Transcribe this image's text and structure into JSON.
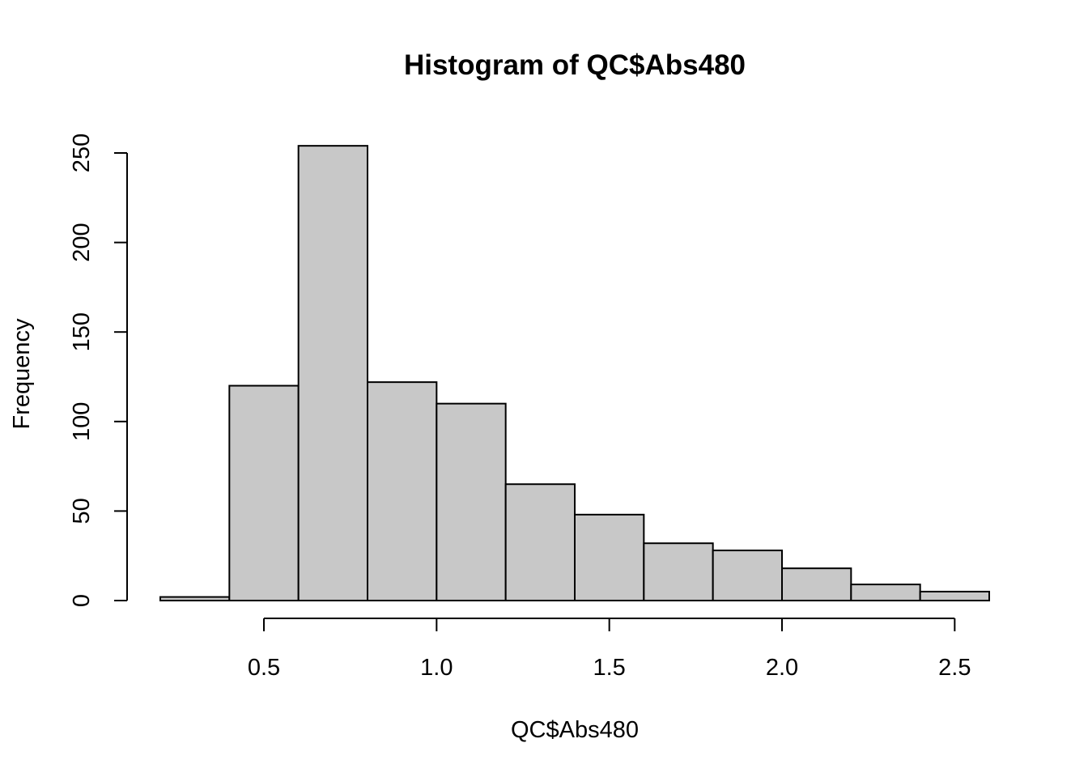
{
  "chart_data": {
    "type": "bar",
    "title": "Histogram of QC$Abs480",
    "xlabel": "QC$Abs480",
    "ylabel": "Frequency",
    "bins": [
      {
        "start": 0.2,
        "end": 0.4,
        "count": 2
      },
      {
        "start": 0.4,
        "end": 0.6,
        "count": 120
      },
      {
        "start": 0.6,
        "end": 0.8,
        "count": 254
      },
      {
        "start": 0.8,
        "end": 1.0,
        "count": 122
      },
      {
        "start": 1.0,
        "end": 1.2,
        "count": 110
      },
      {
        "start": 1.2,
        "end": 1.4,
        "count": 65
      },
      {
        "start": 1.4,
        "end": 1.6,
        "count": 48
      },
      {
        "start": 1.6,
        "end": 1.8,
        "count": 32
      },
      {
        "start": 1.8,
        "end": 2.0,
        "count": 28
      },
      {
        "start": 2.0,
        "end": 2.2,
        "count": 18
      },
      {
        "start": 2.2,
        "end": 2.4,
        "count": 9
      },
      {
        "start": 2.4,
        "end": 2.6,
        "count": 5
      }
    ],
    "xticks": [
      {
        "value": 0.5,
        "label": "0.5"
      },
      {
        "value": 1.0,
        "label": "1.0"
      },
      {
        "value": 1.5,
        "label": "1.5"
      },
      {
        "value": 2.0,
        "label": "2.0"
      },
      {
        "value": 2.5,
        "label": "2.5"
      }
    ],
    "yticks": [
      {
        "value": 0,
        "label": "0"
      },
      {
        "value": 50,
        "label": "50"
      },
      {
        "value": 100,
        "label": "100"
      },
      {
        "value": 150,
        "label": "150"
      },
      {
        "value": 200,
        "label": "200"
      },
      {
        "value": 250,
        "label": "250"
      }
    ],
    "bar_color": "#c8c8c8",
    "grid": false
  }
}
